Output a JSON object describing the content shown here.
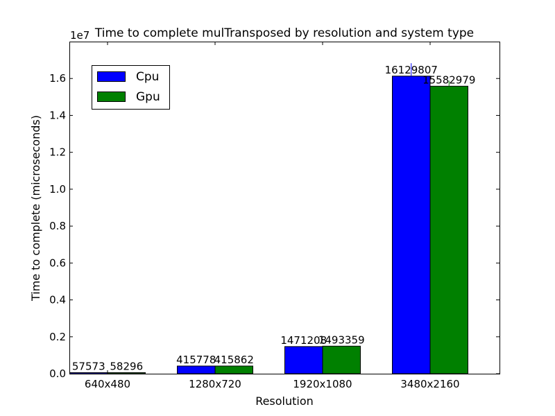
{
  "chart_data": {
    "type": "bar",
    "title": "Time to complete mulTransposed by resolution and system type",
    "xlabel": "Resolution",
    "ylabel": "Time to complete (microseconds)",
    "scale_note": "1e7",
    "categories": [
      "640x480",
      "1280x720",
      "1920x1080",
      "3480x2160"
    ],
    "series": [
      {
        "name": "Cpu",
        "color": "#0000ff",
        "values": [
          57573,
          415778,
          1471208,
          16129807
        ],
        "errors": [
          0,
          0,
          0,
          700000
        ]
      },
      {
        "name": "Gpu",
        "color": "#008000",
        "values": [
          58296,
          415862,
          1493359,
          15582979
        ],
        "errors": [
          0,
          0,
          0,
          300000
        ]
      }
    ],
    "ylim": [
      0,
      18000000
    ],
    "yticks": [
      0,
      2000000,
      4000000,
      6000000,
      8000000,
      10000000,
      12000000,
      14000000,
      16000000
    ],
    "ytick_labels": [
      "0.0",
      "0.2",
      "0.4",
      "0.6",
      "0.8",
      "1.0",
      "1.2",
      "1.4",
      "1.6"
    ],
    "legend_position": "top-left",
    "grid": false
  }
}
